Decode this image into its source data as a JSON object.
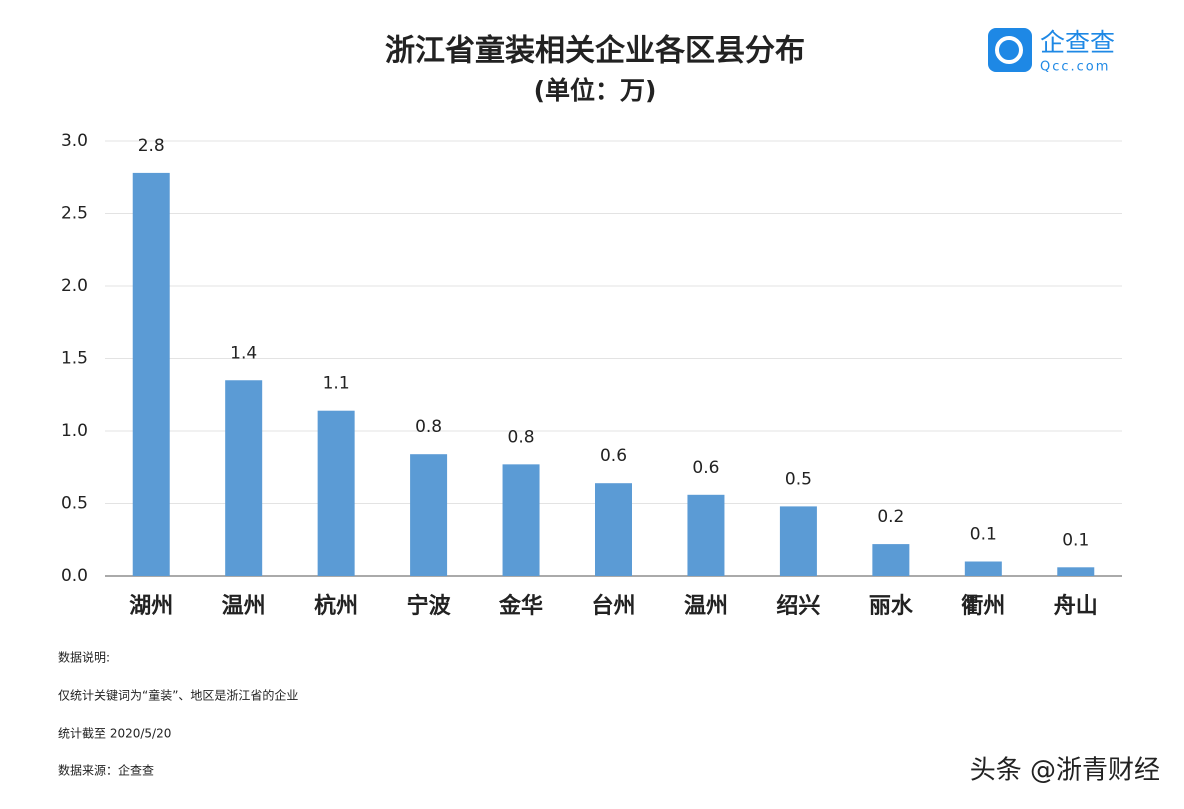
{
  "chart_data": {
    "type": "bar",
    "title": "浙江省童装相关企业各区县分布",
    "subtitle": "(单位：万)",
    "categories": [
      "湖州",
      "温州",
      "杭州",
      "宁波",
      "金华",
      "台州",
      "温州",
      "绍兴",
      "丽水",
      "衢州",
      "舟山"
    ],
    "values": [
      2.78,
      1.35,
      1.14,
      0.84,
      0.77,
      0.64,
      0.56,
      0.48,
      0.22,
      0.1,
      0.06
    ],
    "value_labels": [
      "2.8",
      "1.4",
      "1.1",
      "0.8",
      "0.8",
      "0.6",
      "0.6",
      "0.5",
      "0.2",
      "0.1",
      "0.1"
    ],
    "color": "#5b9bd5",
    "ylim": [
      0,
      3
    ],
    "yticks": [
      {
        "value": 0,
        "label": "0.0"
      },
      0.5,
      {
        "value": 1,
        "label": "1.0"
      },
      1.5,
      {
        "value": 2,
        "label": "2.0"
      },
      2.5,
      {
        "value": 3,
        "label": "3.0"
      }
    ],
    "grid": true,
    "notes": [
      "数据说明:",
      "仅统计关键词为“童装”、地区是浙江省的企业",
      "统计截至 2020/5/20",
      "数据来源：企查查"
    ],
    "logo": {
      "name": "企查查",
      "site": "Qcc.com"
    },
    "watermark": "头条 @浙青财经"
  }
}
